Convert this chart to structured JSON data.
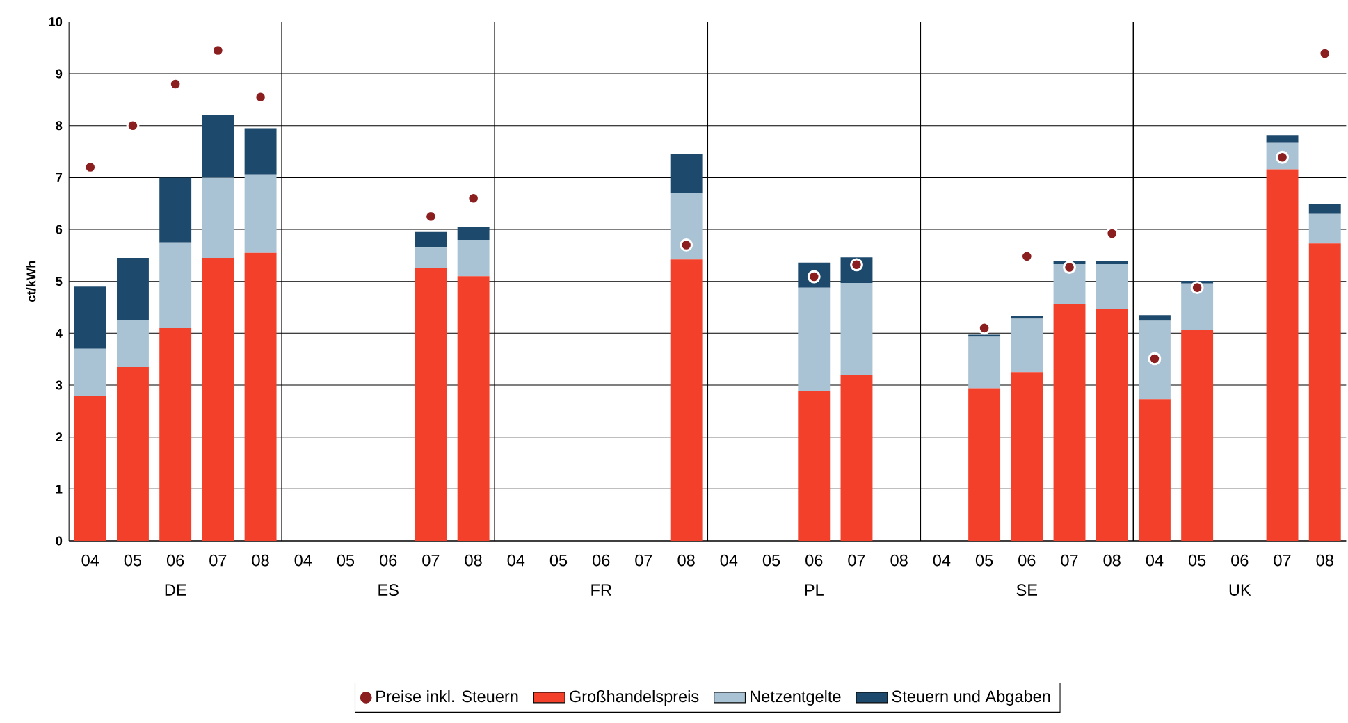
{
  "chart_data": {
    "type": "bar",
    "stacked": true,
    "ylabel": "ct/kWh",
    "categories": [
      "04",
      "05",
      "06",
      "07",
      "08",
      "04",
      "05",
      "06",
      "07",
      "08",
      "04",
      "05",
      "06",
      "07",
      "08",
      "04",
      "05",
      "06",
      "07",
      "08",
      "04",
      "05",
      "06",
      "07",
      "08",
      "04",
      "05",
      "06",
      "07",
      "08"
    ],
    "annotations": [
      "DE",
      "ES",
      "FR",
      "PL",
      "SE",
      "UK"
    ],
    "ylim": [
      0,
      10
    ],
    "yticks": [
      0,
      1,
      2,
      3,
      4,
      5,
      6,
      7,
      8,
      9,
      10
    ],
    "grid": "y",
    "legend": "bottom",
    "series": [
      {
        "name": "Preise inkl. Steuern",
        "type": "scatter",
        "marker": "circle",
        "color": "#8b1f1f",
        "values": [
          7.2,
          8.0,
          8.8,
          9.45,
          8.55,
          null,
          null,
          null,
          6.25,
          6.6,
          null,
          null,
          null,
          null,
          5.7,
          null,
          null,
          5.09,
          5.32,
          null,
          null,
          4.1,
          5.48,
          5.27,
          5.92,
          3.51,
          4.88,
          null,
          7.39,
          9.39
        ]
      },
      {
        "name": "Großhandelspreis",
        "color": "#f2402a",
        "values": [
          2.8,
          3.35,
          4.1,
          5.45,
          5.55,
          null,
          null,
          null,
          5.25,
          5.1,
          null,
          null,
          null,
          null,
          5.42,
          null,
          null,
          2.88,
          3.2,
          null,
          null,
          2.94,
          3.25,
          4.56,
          4.46,
          2.73,
          4.06,
          null,
          7.16,
          5.73
        ]
      },
      {
        "name": "Netzentgelte",
        "color": "#a9c3d5",
        "values": [
          0.9,
          0.9,
          1.65,
          1.55,
          1.5,
          null,
          null,
          null,
          0.4,
          0.7,
          null,
          null,
          null,
          null,
          1.28,
          null,
          null,
          2.0,
          1.77,
          null,
          null,
          0.99,
          1.03,
          0.77,
          0.87,
          1.51,
          0.9,
          null,
          0.52,
          0.57
        ]
      },
      {
        "name": "Steuern und Abgaben",
        "color": "#1d4a6c",
        "values": [
          1.2,
          1.2,
          1.25,
          1.2,
          0.9,
          null,
          null,
          null,
          0.3,
          0.25,
          null,
          null,
          null,
          null,
          0.75,
          null,
          null,
          0.48,
          0.49,
          null,
          null,
          0.04,
          0.06,
          0.06,
          0.06,
          0.11,
          0.05,
          null,
          0.14,
          0.19
        ]
      }
    ]
  }
}
